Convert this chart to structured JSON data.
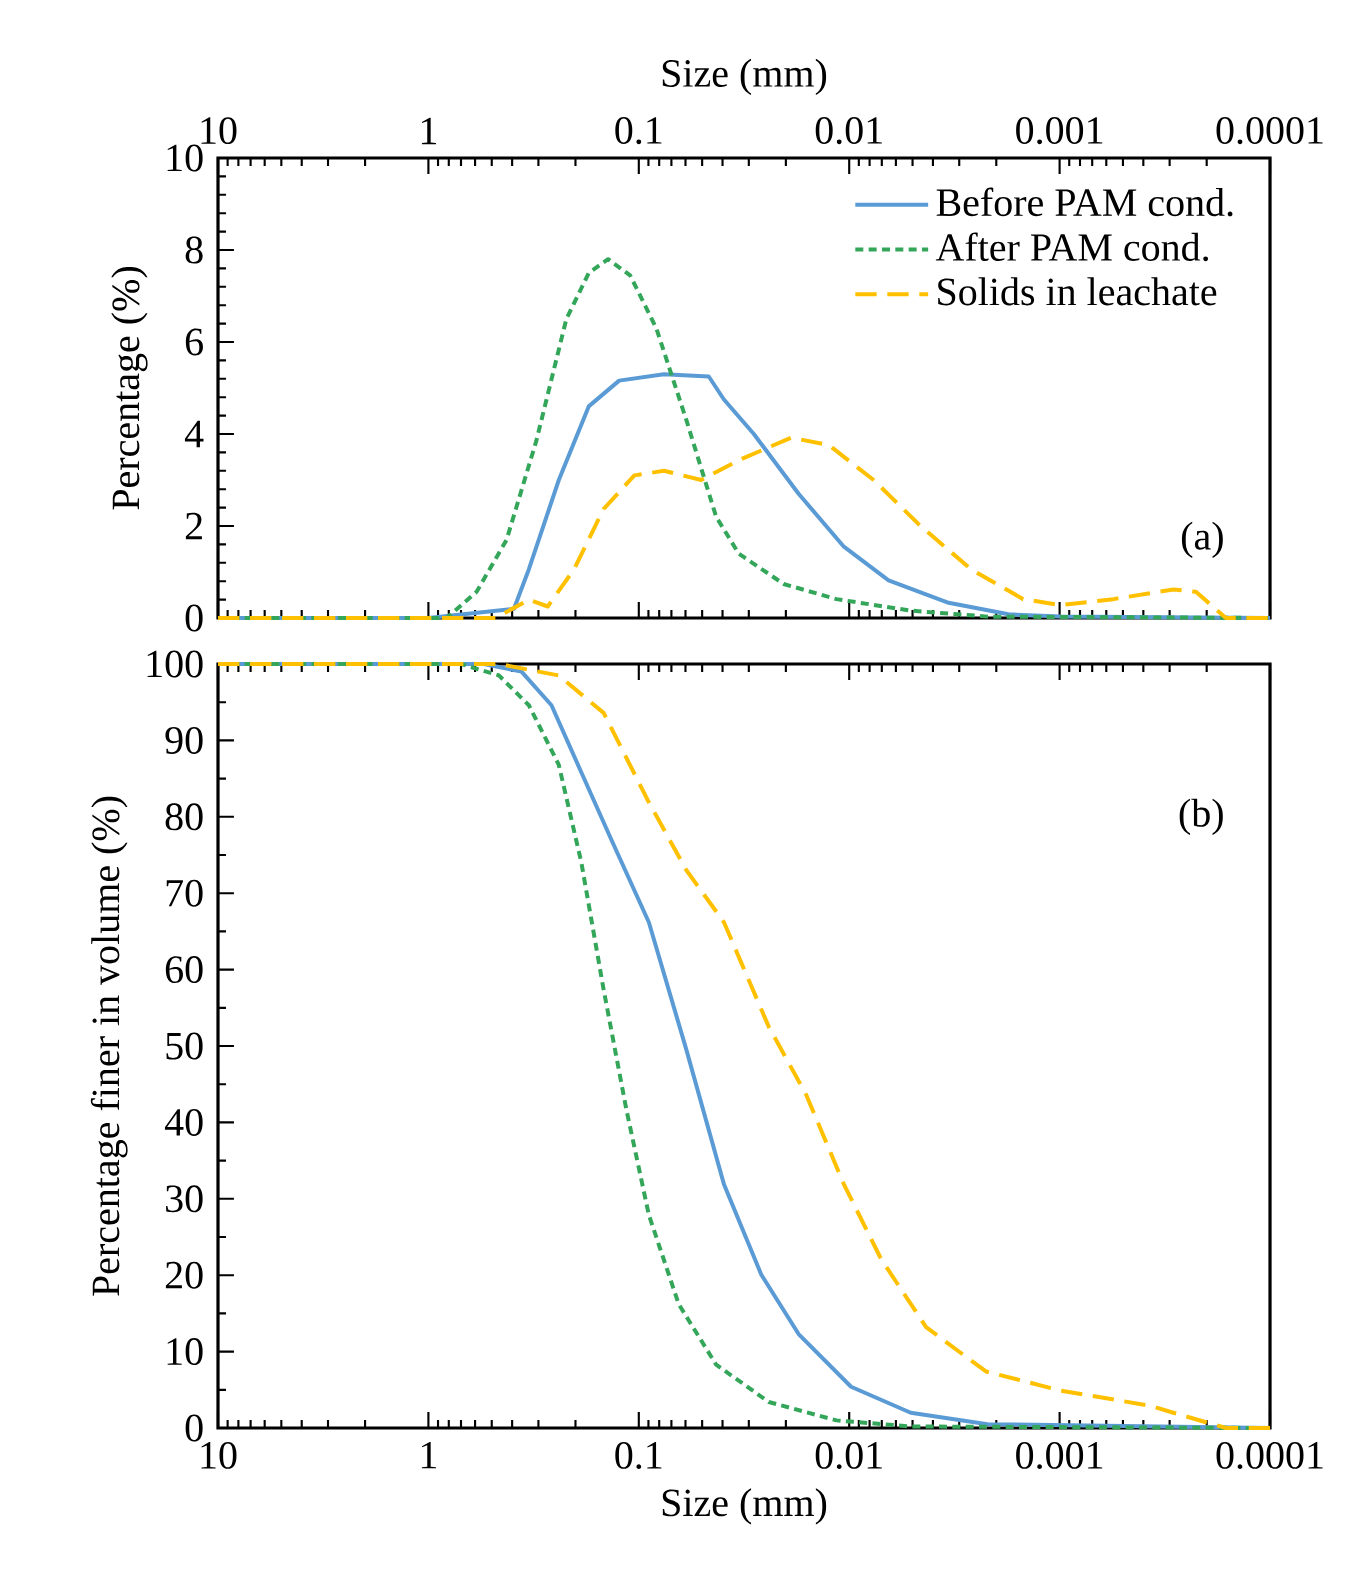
{
  "chart_data": [
    {
      "type": "line",
      "xlabel": "Size (mm)",
      "ylabel": "Percentage (%)",
      "xlim": [
        10,
        0.0001
      ],
      "xticks": [
        10,
        1,
        0.1,
        0.01,
        0.001,
        0.0001
      ],
      "ylim": [
        0,
        10
      ],
      "yticks": [
        0,
        2,
        4,
        6,
        8,
        10
      ],
      "log": "x",
      "legend": "top right",
      "annotations": [
        "(a)"
      ],
      "series": [
        {
          "name": "Before PAM cond.",
          "color": "#5b9bd5",
          "line_style": "solid",
          "x": [
            10,
            1,
            0.392,
            0.333,
            0.24,
            0.173,
            0.124,
            0.076,
            0.0465,
            0.0394,
            0.0284,
            0.0174,
            0.0106,
            0.0065,
            0.00337,
            0.00175,
            0.00099,
            0.0001
          ],
          "values": [
            0,
            0,
            0.2,
            1.06,
            3.0,
            4.6,
            5.16,
            5.3,
            5.25,
            4.75,
            4.0,
            2.7,
            1.55,
            0.82,
            0.33,
            0.08,
            0.03,
            0
          ]
        },
        {
          "name": "After PAM cond.",
          "color": "#33a65a",
          "line_style": "dotted",
          "x": [
            10,
            0.82,
            0.59,
            0.425,
            0.307,
            0.221,
            0.173,
            0.14,
            0.11,
            0.0826,
            0.0594,
            0.0429,
            0.0335,
            0.0205,
            0.0115,
            0.0051,
            0.0022,
            0.0001
          ],
          "values": [
            0,
            0,
            0.57,
            1.7,
            3.85,
            6.5,
            7.5,
            7.8,
            7.45,
            6.3,
            4.3,
            2.2,
            1.4,
            0.74,
            0.41,
            0.16,
            0.03,
            0
          ]
        },
        {
          "name": "Solids in leachate",
          "color": "#ffc000",
          "line_style": "dashed",
          "x": [
            10,
            0.48,
            0.333,
            0.271,
            0.203,
            0.147,
            0.105,
            0.076,
            0.0505,
            0.0335,
            0.0189,
            0.0125,
            0.00766,
            0.00468,
            0.00264,
            0.00149,
            0.00099,
            0.000555,
            0.000288,
            0.000225,
            0.000162,
            0.0001
          ],
          "values": [
            0,
            0,
            0.4,
            0.25,
            1.06,
            2.37,
            3.1,
            3.2,
            3.0,
            3.43,
            3.92,
            3.76,
            3.0,
            2.04,
            1.06,
            0.41,
            0.28,
            0.41,
            0.62,
            0.57,
            0,
            0
          ]
        }
      ]
    },
    {
      "type": "line",
      "xlabel": "Size (mm)",
      "ylabel": "Percentage finer in volume (%)",
      "xlim": [
        10,
        0.0001
      ],
      "xticks": [
        10,
        1,
        0.1,
        0.01,
        0.001,
        0.0001
      ],
      "ylim": [
        0,
        100
      ],
      "yticks": [
        0,
        10,
        20,
        30,
        40,
        50,
        60,
        70,
        80,
        90,
        100
      ],
      "log": "x",
      "annotations": [
        "(b)"
      ],
      "series": [
        {
          "color": "#5b9bd5",
          "line_style": "solid",
          "x": [
            10,
            0.545,
            0.361,
            0.26,
            0.1875,
            0.135,
            0.0896,
            0.0594,
            0.0394,
            0.0262,
            0.0174,
            0.0098,
            0.0051,
            0.0022,
            0.0001
          ],
          "values": [
            100,
            100,
            99,
            94.6,
            85.8,
            77,
            66.2,
            49.5,
            31.9,
            20.1,
            12.3,
            5.4,
            2.0,
            0.5,
            0
          ]
        },
        {
          "color": "#33a65a",
          "line_style": "dotted",
          "x": [
            10,
            0.7,
            0.462,
            0.333,
            0.24,
            0.1875,
            0.147,
            0.1146,
            0.0896,
            0.0646,
            0.0429,
            0.0241,
            0.0115,
            0.0051,
            0.0001
          ],
          "values": [
            100,
            100,
            98.5,
            94.6,
            86.8,
            74,
            57.4,
            41.7,
            27.9,
            16.2,
            8.3,
            3.4,
            1.0,
            0.2,
            0
          ]
        },
        {
          "color": "#ffc000",
          "line_style": "dashed",
          "x": [
            10,
            0.462,
            0.24,
            0.147,
            0.0896,
            0.0594,
            0.0394,
            0.0241,
            0.016,
            0.0106,
            0.00705,
            0.00431,
            0.00224,
            0.00099,
            0.000368,
            0.000288,
            0.000162,
            0.0001
          ],
          "values": [
            100,
            100,
            98.5,
            93.6,
            81.9,
            73,
            66.2,
            52.5,
            43.6,
            31.9,
            22.1,
            13.2,
            7.4,
            4.9,
            2.9,
            2.0,
            0,
            0
          ]
        }
      ]
    }
  ]
}
